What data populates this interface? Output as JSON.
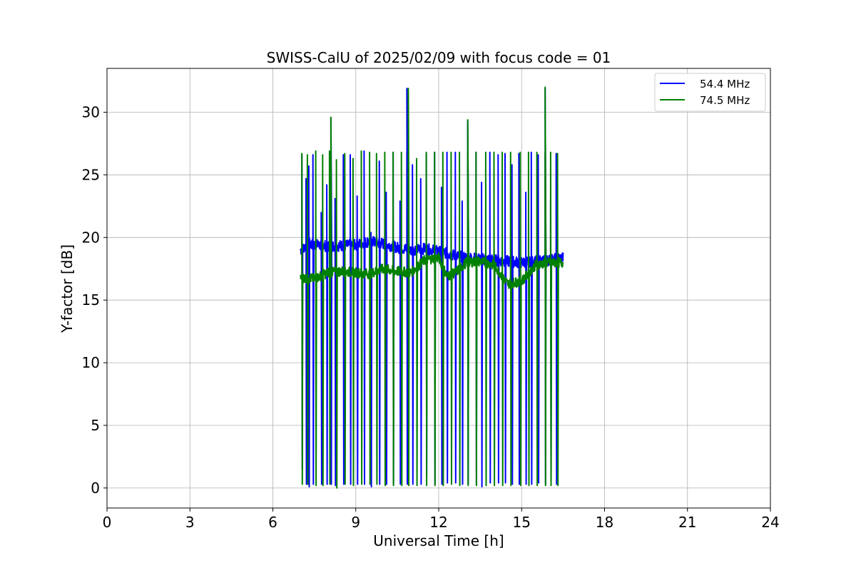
{
  "chart_data": {
    "type": "line",
    "title": "SWISS-CalU of 2025/02/09 with focus code = 01",
    "xlabel": "Universal Time [h]",
    "ylabel": "Y-factor [dB]",
    "xlim": [
      0,
      24
    ],
    "ylim": [
      -1.6,
      33.5
    ],
    "xticks": [
      0,
      3,
      6,
      9,
      12,
      15,
      18,
      21,
      24
    ],
    "yticks": [
      0,
      5,
      10,
      15,
      20,
      25,
      30
    ],
    "grid": true,
    "legend_position": "top-right",
    "series": [
      {
        "name": "54.4 MHz",
        "color": "#0000ff",
        "baseline": [
          [
            7.0,
            19.0
          ],
          [
            7.3,
            19.5
          ],
          [
            8.0,
            19.3
          ],
          [
            9.0,
            19.4
          ],
          [
            9.5,
            19.7
          ],
          [
            10.0,
            19.5
          ],
          [
            10.5,
            19.2
          ],
          [
            11.0,
            19.0
          ],
          [
            11.5,
            19.1
          ],
          [
            12.0,
            18.9
          ],
          [
            12.5,
            18.6
          ],
          [
            13.0,
            18.4
          ],
          [
            13.5,
            18.3
          ],
          [
            14.0,
            18.2
          ],
          [
            14.5,
            18.1
          ],
          [
            15.0,
            18.0
          ],
          [
            15.5,
            18.1
          ],
          [
            16.0,
            18.2
          ],
          [
            16.5,
            18.4
          ]
        ],
        "spikes": [
          [
            7.05,
            26.6,
            1.5
          ],
          [
            7.2,
            24.7,
            0.3
          ],
          [
            7.3,
            25.7,
            0.1
          ],
          [
            7.45,
            26.6,
            0.3
          ],
          [
            7.75,
            22.0,
            0.3
          ],
          [
            7.95,
            24.2,
            0.3
          ],
          [
            8.1,
            26.9,
            0.3
          ],
          [
            8.25,
            23.1,
            0.2
          ],
          [
            8.55,
            26.6,
            0.3
          ],
          [
            8.8,
            26.6,
            0.3
          ],
          [
            9.05,
            23.3,
            0.3
          ],
          [
            9.3,
            26.9,
            0.3
          ],
          [
            9.55,
            20.4,
            0.1
          ],
          [
            9.85,
            26.1,
            0.3
          ],
          [
            10.1,
            23.6,
            0.3
          ],
          [
            10.35,
            26.8,
            0.3
          ],
          [
            10.6,
            22.9,
            0.3
          ],
          [
            10.85,
            26.8,
            0.3
          ],
          [
            11.05,
            25.8,
            0.3
          ],
          [
            11.35,
            24.7,
            0.3
          ],
          [
            11.55,
            26.7,
            1.0
          ],
          [
            11.85,
            26.8,
            0.3
          ],
          [
            12.1,
            24.0,
            0.3
          ],
          [
            12.3,
            26.8,
            0.4
          ],
          [
            12.6,
            26.8,
            0.4
          ],
          [
            12.85,
            22.9,
            0.3
          ],
          [
            13.05,
            26.8,
            0.3
          ],
          [
            13.35,
            26.8,
            0.3
          ],
          [
            13.55,
            24.4,
            0.1
          ],
          [
            13.85,
            26.8,
            0.4
          ],
          [
            14.15,
            26.6,
            0.4
          ],
          [
            14.4,
            26.7,
            0.4
          ],
          [
            14.65,
            25.8,
            0.3
          ],
          [
            14.9,
            26.7,
            0.3
          ],
          [
            15.15,
            23.6,
            0.3
          ],
          [
            15.35,
            26.8,
            0.3
          ],
          [
            15.6,
            26.6,
            0.4
          ],
          [
            15.85,
            26.7,
            0.3
          ],
          [
            16.05,
            23.0,
            0.3
          ],
          [
            16.25,
            26.7,
            0.3
          ],
          [
            16.5,
            20.3,
            18.0
          ]
        ],
        "peaks": [
          [
            8.1,
            29.5
          ],
          [
            10.85,
            31.9
          ],
          [
            13.05,
            29.3
          ],
          [
            15.85,
            31.9
          ]
        ]
      },
      {
        "name": "74.5 MHz",
        "color": "#008000",
        "baseline": [
          [
            7.0,
            16.8
          ],
          [
            7.5,
            16.7
          ],
          [
            8.0,
            17.2
          ],
          [
            8.5,
            17.3
          ],
          [
            9.0,
            17.2
          ],
          [
            9.5,
            17.1
          ],
          [
            10.0,
            17.5
          ],
          [
            10.5,
            17.3
          ],
          [
            11.0,
            17.2
          ],
          [
            11.5,
            18.2
          ],
          [
            12.0,
            18.4
          ],
          [
            12.3,
            16.9
          ],
          [
            12.6,
            17.2
          ],
          [
            13.0,
            18.0
          ],
          [
            13.5,
            18.1
          ],
          [
            14.0,
            17.8
          ],
          [
            14.5,
            16.3
          ],
          [
            15.0,
            16.5
          ],
          [
            15.5,
            17.8
          ],
          [
            16.0,
            18.0
          ],
          [
            16.5,
            18.0
          ]
        ],
        "spikes": [
          [
            7.05,
            26.7,
            0.3
          ],
          [
            7.25,
            26.6,
            0.3
          ],
          [
            7.55,
            26.9,
            0.2
          ],
          [
            7.8,
            26.6,
            0.2
          ],
          [
            8.05,
            26.9,
            0.3
          ],
          [
            8.3,
            26.2,
            0.0
          ],
          [
            8.6,
            26.7,
            0.3
          ],
          [
            8.9,
            26.3,
            0.2
          ],
          [
            9.2,
            26.9,
            0.3
          ],
          [
            9.5,
            26.8,
            0.3
          ],
          [
            9.75,
            26.7,
            0.3
          ],
          [
            10.05,
            26.8,
            0.2
          ],
          [
            10.35,
            26.8,
            0.2
          ],
          [
            10.65,
            26.8,
            0.2
          ],
          [
            10.9,
            26.8,
            0.2
          ],
          [
            11.2,
            26.3,
            0.2
          ],
          [
            11.55,
            26.8,
            0.2
          ],
          [
            11.85,
            26.8,
            0.2
          ],
          [
            12.15,
            26.8,
            0.2
          ],
          [
            12.45,
            26.8,
            0.3
          ],
          [
            12.75,
            26.8,
            0.2
          ],
          [
            13.05,
            26.8,
            0.2
          ],
          [
            13.35,
            26.8,
            0.2
          ],
          [
            13.7,
            26.8,
            0.2
          ],
          [
            14.0,
            26.8,
            0.2
          ],
          [
            14.3,
            26.8,
            0.2
          ],
          [
            14.6,
            26.8,
            0.2
          ],
          [
            14.95,
            26.8,
            0.2
          ],
          [
            15.25,
            26.8,
            0.2
          ],
          [
            15.55,
            26.8,
            0.2
          ],
          [
            15.85,
            26.8,
            0.2
          ],
          [
            16.05,
            26.8,
            0.2
          ],
          [
            16.3,
            26.7,
            0.2
          ]
        ],
        "peaks": [
          [
            8.1,
            29.6
          ],
          [
            10.9,
            31.9
          ],
          [
            13.05,
            29.4
          ],
          [
            15.85,
            32.0
          ]
        ]
      }
    ]
  }
}
